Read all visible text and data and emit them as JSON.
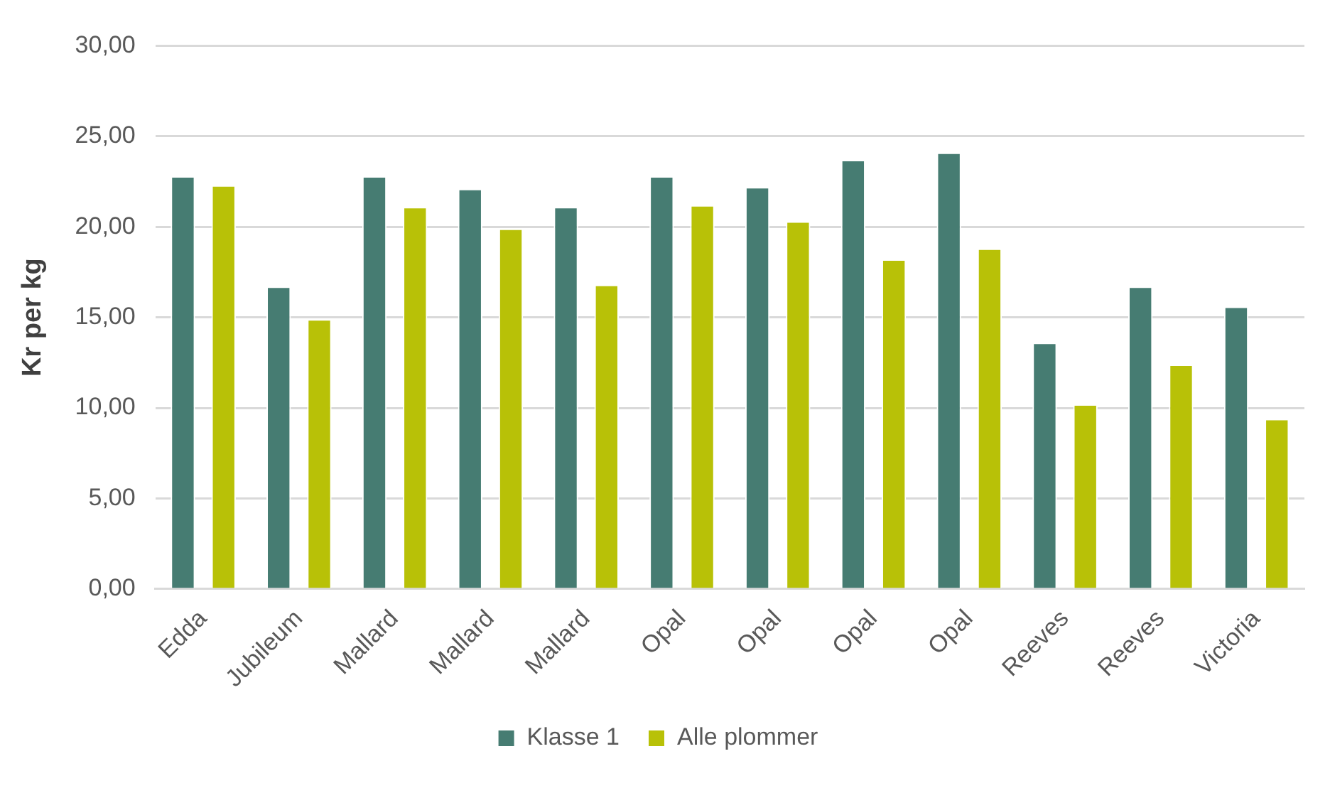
{
  "chart_data": {
    "type": "bar",
    "ylabel": "Kr per kg",
    "categories": [
      "Edda",
      "Jubileum",
      "Mallard",
      "Mallard",
      "Mallard",
      "Opal",
      "Opal",
      "Opal",
      "Opal",
      "Reeves",
      "Reeves",
      "Victoria"
    ],
    "series": [
      {
        "name": "Klasse 1",
        "color": "#467c72",
        "values": [
          22.8,
          16.7,
          22.8,
          22.1,
          21.1,
          22.8,
          22.2,
          23.7,
          24.1,
          13.6,
          16.7,
          15.6
        ]
      },
      {
        "name": "Alle plommer",
        "color": "#b8c107",
        "values": [
          22.3,
          14.9,
          21.1,
          19.9,
          16.8,
          21.2,
          20.3,
          18.2,
          18.8,
          10.2,
          12.4,
          9.4
        ]
      }
    ],
    "ylim": [
      0,
      30
    ],
    "yticks": [
      {
        "value": 0,
        "label": "0,00"
      },
      {
        "value": 5,
        "label": "5,00"
      },
      {
        "value": 10,
        "label": "10,00"
      },
      {
        "value": 15,
        "label": "15,00"
      },
      {
        "value": 20,
        "label": "20,00"
      },
      {
        "value": 25,
        "label": "25,00"
      },
      {
        "value": 30,
        "label": "30,00"
      }
    ],
    "grid": "y",
    "legend": "bottom"
  }
}
